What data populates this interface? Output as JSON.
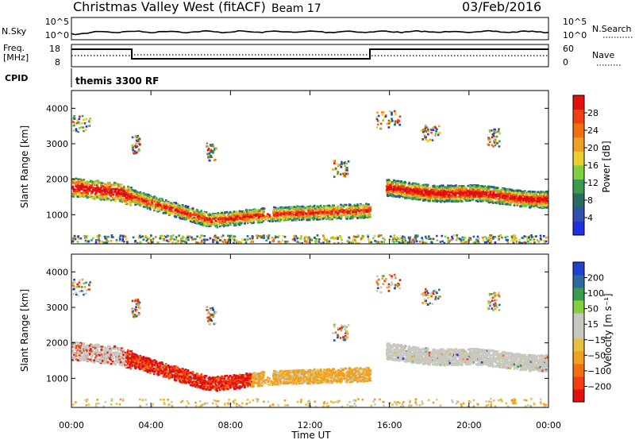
{
  "header": {
    "station": "Christmas Valley West (fitACF)",
    "beam": "Beam 17",
    "date": "03/Feb/2016"
  },
  "strips": {
    "nsky_label": "N.Sky",
    "nsearch_label": "N.Search",
    "nsky_ticks": [
      "10^5",
      "10^0"
    ],
    "nsearch_ticks": [
      "10^5",
      "10^0"
    ],
    "freq_label_1": "Freq.",
    "freq_label_2": "[MHz]",
    "freq_ticks": [
      "18",
      "8"
    ],
    "nave_label": "Nave",
    "nave_ticks": [
      "60",
      "0"
    ],
    "cpid_label": "CPID",
    "cpid_text": "themis 3300 RF"
  },
  "colors": {
    "power": [
      "#2030e0",
      "#3050b0",
      "#2a6a60",
      "#3c9a50",
      "#7fd040",
      "#e8d030",
      "#f0a020",
      "#f07010",
      "#f04010",
      "#e01010"
    ],
    "velocity": [
      "#e01010",
      "#f04010",
      "#f07010",
      "#f0a020",
      "#e8c040",
      "#c8c8c0",
      "#c8c8c0",
      "#80d040",
      "#3a9a50",
      "#2a6aa0",
      "#2040d0"
    ],
    "ground": "#c8c8c0"
  },
  "chart_data": [
    {
      "type": "heatmap",
      "ylabel": "Slant Range [km]",
      "y_ticks": [
        1000,
        2000,
        3000,
        4000
      ],
      "ylim": [
        180,
        4500
      ],
      "x_ticks": [
        "00:00",
        "04:00",
        "08:00",
        "12:00",
        "16:00",
        "20:00",
        "00:00"
      ],
      "xlim_hours": [
        0,
        24
      ],
      "colorbar_label": "Power [dB]",
      "colorbar_ticks": [
        "4",
        "8",
        "12",
        "16",
        "20",
        "24",
        "28"
      ],
      "colorbar_range": [
        0,
        30
      ]
    },
    {
      "type": "heatmap",
      "ylabel": "Slant Range [km]",
      "y_ticks": [
        1000,
        2000,
        3000,
        4000
      ],
      "ylim": [
        180,
        4500
      ],
      "x_ticks": [
        "00:00",
        "04:00",
        "08:00",
        "12:00",
        "16:00",
        "20:00",
        "00:00"
      ],
      "xlabel": "Time UT",
      "xlim_hours": [
        0,
        24
      ],
      "colorbar_label": "Velocity [m s⁻¹]",
      "colorbar_ticks": [
        "200",
        "100",
        "50",
        "15",
        "−15",
        "−50",
        "−100",
        "−200"
      ]
    }
  ]
}
